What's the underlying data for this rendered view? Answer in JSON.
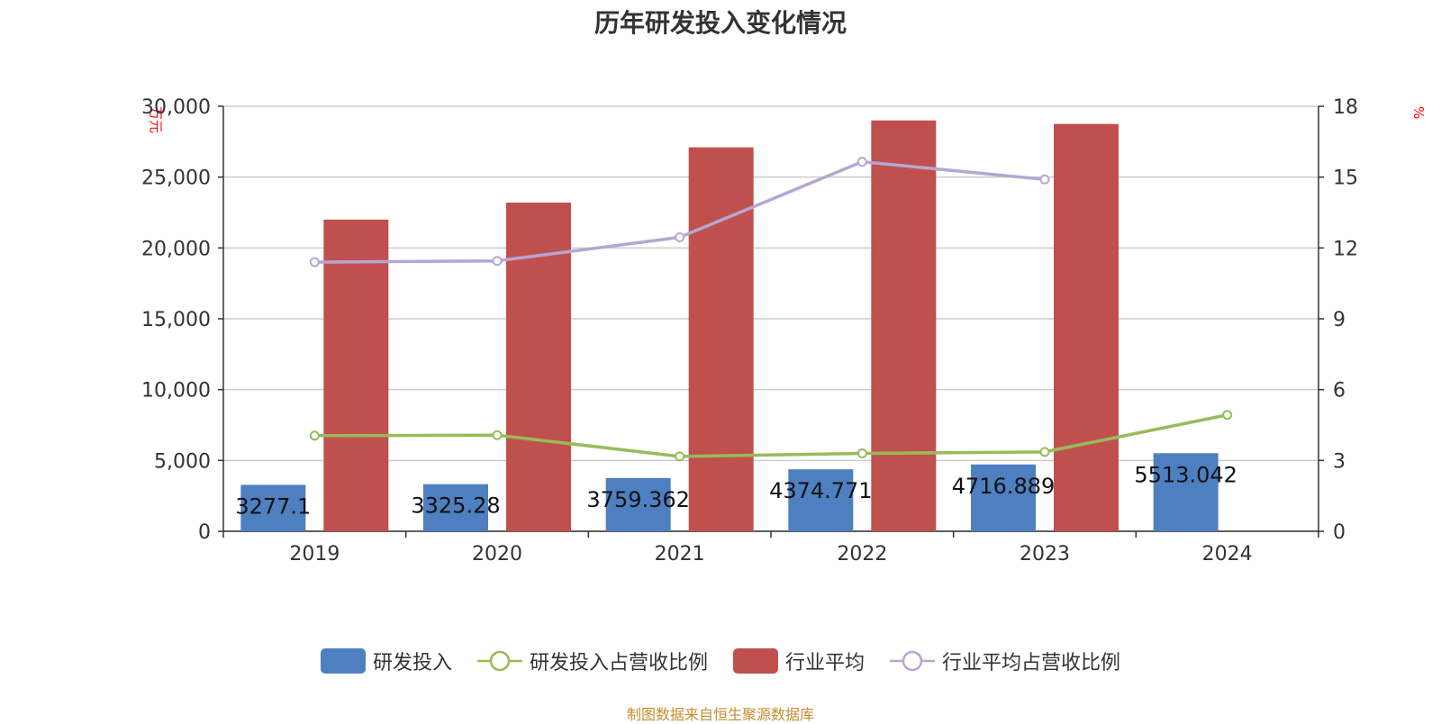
{
  "chart_data": {
    "type": "bar",
    "title": "历年研发投入变化情况",
    "source": "制图数据来自恒生聚源数据库",
    "x": [
      "2019",
      "2020",
      "2021",
      "2022",
      "2023",
      "2024"
    ],
    "left_axis": {
      "unit": "万元",
      "ylim": [
        0,
        30000
      ],
      "ticks": [
        0,
        5000,
        10000,
        15000,
        20000,
        25000,
        30000
      ],
      "tick_labels": [
        "0",
        "5,000",
        "10,000",
        "15,000",
        "20,000",
        "25,000",
        "30,000"
      ]
    },
    "right_axis": {
      "unit": "%",
      "ylim": [
        0,
        18
      ],
      "ticks": [
        0,
        3,
        6,
        9,
        12,
        15,
        18
      ],
      "tick_labels": [
        "0",
        "3",
        "6",
        "9",
        "12",
        "15",
        "18"
      ]
    },
    "series": [
      {
        "name": "研发投入",
        "type": "bar",
        "axis": "left",
        "color": "#4e80c1",
        "values": [
          3277.1,
          3325.28,
          3759.362,
          4374.771,
          4716.889,
          5513.042
        ],
        "labels": [
          "3277.1",
          "3325.28",
          "3759.362",
          "4374.771",
          "4716.889",
          "5513.042"
        ]
      },
      {
        "name": "研发投入占营收比例",
        "type": "line",
        "axis": "right",
        "color": "#98bb5a",
        "values": [
          4.05,
          4.07,
          3.17,
          3.3,
          3.36,
          4.93
        ]
      },
      {
        "name": "行业平均",
        "type": "bar",
        "axis": "left",
        "color": "#c0504d",
        "values": [
          22000,
          23200,
          27100,
          29000,
          28750,
          null
        ]
      },
      {
        "name": "行业平均占营收比例",
        "type": "line",
        "axis": "right",
        "color": "#b7a6d2",
        "values": [
          11.4,
          11.45,
          12.45,
          15.65,
          14.9,
          null
        ]
      }
    ],
    "grid": true,
    "legend_position": "bottom"
  }
}
